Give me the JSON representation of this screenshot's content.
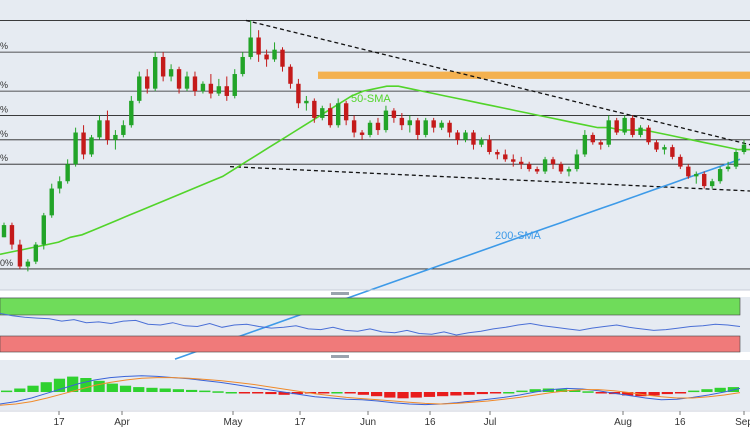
{
  "chart_data": [
    {
      "type": "candlestick",
      "title": "",
      "annotations": [
        "50-SMA",
        "200-SMA"
      ],
      "y_tick_labels": [
        "%",
        "%",
        "%",
        "%",
        "%",
        "0%"
      ],
      "candles": [
        [
          0.0,
          0.6,
          0.0,
          0.5
        ],
        [
          0.5,
          0.6,
          -0.5,
          -0.3
        ],
        [
          -0.3,
          -0.1,
          -1.3,
          -1.2
        ],
        [
          -1.2,
          -0.9,
          -1.4,
          -1.0
        ],
        [
          -1.0,
          -0.2,
          -1.1,
          -0.3
        ],
        [
          -0.3,
          1.0,
          -0.5,
          0.9
        ],
        [
          0.9,
          2.2,
          0.8,
          2.0
        ],
        [
          2.0,
          2.5,
          1.8,
          2.3
        ],
        [
          2.3,
          3.2,
          2.2,
          3.0
        ],
        [
          3.0,
          4.5,
          2.9,
          4.3
        ],
        [
          4.3,
          4.6,
          3.2,
          3.4
        ],
        [
          3.4,
          4.2,
          3.3,
          4.1
        ],
        [
          4.1,
          5.0,
          4.0,
          4.8
        ],
        [
          4.8,
          5.2,
          3.8,
          4.0
        ],
        [
          4.0,
          4.4,
          3.6,
          4.2
        ],
        [
          4.2,
          4.8,
          4.1,
          4.6
        ],
        [
          4.6,
          5.8,
          4.5,
          5.6
        ],
        [
          5.6,
          6.8,
          5.5,
          6.6
        ],
        [
          6.6,
          6.9,
          5.9,
          6.1
        ],
        [
          6.1,
          7.6,
          6.0,
          7.4
        ],
        [
          7.4,
          7.6,
          6.4,
          6.6
        ],
        [
          6.6,
          7.1,
          6.4,
          6.9
        ],
        [
          6.9,
          7.0,
          5.9,
          6.1
        ],
        [
          6.1,
          6.8,
          6.0,
          6.6
        ],
        [
          6.6,
          6.8,
          5.8,
          6.0
        ],
        [
          6.0,
          6.4,
          5.9,
          6.3
        ],
        [
          6.3,
          6.7,
          5.7,
          5.9
        ],
        [
          5.9,
          6.5,
          5.8,
          6.2
        ],
        [
          6.2,
          6.6,
          5.6,
          5.8
        ],
        [
          5.8,
          6.9,
          5.7,
          6.7
        ],
        [
          6.7,
          7.6,
          6.6,
          7.4
        ],
        [
          7.4,
          8.9,
          7.3,
          8.2
        ],
        [
          8.2,
          8.5,
          7.2,
          7.5
        ],
        [
          7.5,
          7.7,
          7.0,
          7.3
        ],
        [
          7.3,
          8.0,
          7.2,
          7.7
        ],
        [
          7.7,
          7.8,
          6.8,
          7.0
        ],
        [
          7.0,
          7.1,
          6.1,
          6.3
        ],
        [
          6.3,
          6.5,
          5.3,
          5.5
        ],
        [
          5.5,
          5.8,
          5.2,
          5.6
        ],
        [
          5.6,
          5.7,
          4.7,
          4.9
        ],
        [
          4.9,
          5.4,
          4.8,
          5.3
        ],
        [
          5.3,
          5.5,
          4.5,
          4.6
        ],
        [
          4.6,
          5.7,
          4.5,
          5.5
        ],
        [
          5.5,
          5.6,
          4.6,
          4.8
        ],
        [
          4.8,
          5.0,
          4.1,
          4.3
        ],
        [
          4.3,
          4.4,
          4.0,
          4.2
        ],
        [
          4.2,
          4.8,
          4.1,
          4.7
        ],
        [
          4.7,
          4.9,
          4.2,
          4.4
        ],
        [
          4.4,
          5.4,
          4.3,
          5.2
        ],
        [
          5.2,
          5.3,
          4.7,
          4.9
        ],
        [
          4.9,
          5.1,
          4.4,
          4.6
        ],
        [
          4.6,
          5.0,
          4.3,
          4.8
        ],
        [
          4.8,
          4.9,
          4.0,
          4.2
        ],
        [
          4.2,
          4.9,
          4.1,
          4.8
        ],
        [
          4.8,
          4.9,
          4.3,
          4.5
        ],
        [
          4.5,
          4.8,
          4.4,
          4.7
        ],
        [
          4.7,
          4.8,
          4.1,
          4.3
        ],
        [
          4.3,
          4.4,
          3.8,
          4.0
        ],
        [
          4.0,
          4.4,
          3.9,
          4.3
        ],
        [
          4.3,
          4.4,
          3.6,
          3.8
        ],
        [
          3.8,
          4.1,
          3.7,
          4.0
        ],
        [
          4.0,
          4.2,
          3.4,
          3.5
        ],
        [
          3.5,
          3.6,
          3.2,
          3.4
        ],
        [
          3.4,
          3.6,
          3.1,
          3.2
        ],
        [
          3.2,
          3.4,
          2.9,
          3.1
        ],
        [
          3.1,
          3.3,
          2.8,
          3.0
        ],
        [
          3.0,
          3.1,
          2.7,
          2.8
        ],
        [
          2.8,
          2.9,
          2.6,
          2.7
        ],
        [
          2.7,
          3.3,
          2.6,
          3.2
        ],
        [
          3.2,
          3.3,
          2.8,
          3.0
        ],
        [
          3.0,
          3.1,
          2.6,
          2.7
        ],
        [
          2.7,
          2.9,
          2.5,
          2.8
        ],
        [
          2.8,
          3.6,
          2.7,
          3.4
        ],
        [
          3.4,
          4.4,
          3.3,
          4.2
        ],
        [
          4.2,
          4.3,
          3.8,
          3.9
        ],
        [
          3.9,
          4.0,
          3.6,
          3.8
        ],
        [
          3.8,
          5.0,
          3.7,
          4.8
        ],
        [
          4.8,
          4.9,
          4.2,
          4.3
        ],
        [
          4.3,
          5.0,
          4.2,
          4.9
        ],
        [
          4.9,
          5.0,
          4.1,
          4.2
        ],
        [
          4.2,
          4.6,
          4.1,
          4.5
        ],
        [
          4.5,
          4.6,
          3.8,
          3.9
        ],
        [
          3.9,
          4.0,
          3.5,
          3.6
        ],
        [
          3.6,
          3.8,
          3.4,
          3.7
        ],
        [
          3.7,
          3.8,
          3.2,
          3.3
        ],
        [
          3.3,
          3.4,
          2.8,
          2.9
        ],
        [
          2.9,
          3.0,
          2.4,
          2.5
        ],
        [
          2.5,
          2.7,
          2.2,
          2.6
        ],
        [
          2.6,
          2.7,
          2.0,
          2.1
        ],
        [
          2.1,
          2.4,
          2.0,
          2.3
        ],
        [
          2.3,
          2.9,
          2.2,
          2.8
        ],
        [
          2.8,
          3.1,
          2.7,
          2.9
        ],
        [
          2.9,
          3.6,
          2.8,
          3.5
        ],
        [
          3.5,
          4.0,
          3.4,
          3.8
        ]
      ],
      "series": [
        {
          "name": "50-SMA",
          "color": "#52d42a",
          "values": [
            -0.7,
            -0.6,
            -0.5,
            -0.4,
            -0.3,
            -0.2,
            0.0,
            0.1,
            0.3,
            0.5,
            0.7,
            0.9,
            1.1,
            1.3,
            1.5,
            1.7,
            1.9,
            2.1,
            2.3,
            2.5,
            2.8,
            3.1,
            3.4,
            3.7,
            4.0,
            4.3,
            4.6,
            4.9,
            5.2,
            5.5,
            5.8,
            6.0,
            6.1,
            6.2,
            6.2,
            6.1,
            6.0,
            5.9,
            5.8,
            5.7,
            5.6,
            5.5,
            5.4,
            5.3,
            5.2,
            5.1,
            5.0,
            4.9,
            4.8,
            4.7,
            4.6,
            4.5,
            4.5,
            4.4,
            4.4,
            4.4,
            4.3,
            4.2,
            4.1,
            4.0,
            3.9,
            3.8,
            3.7,
            3.6,
            3.6
          ]
        },
        {
          "name": "200-SMA",
          "color": "#3d9ae8",
          "values": [
            -5.0,
            -4.8,
            -4.6,
            -4.4,
            -4.2,
            -4.0,
            -3.8,
            -3.6,
            -3.4,
            -3.2,
            -3.0,
            -2.8,
            -2.6,
            -2.4,
            -2.2,
            -2.0,
            -1.8,
            -1.6,
            -1.4,
            -1.2,
            -1.0,
            -0.8,
            -0.6,
            -0.4,
            -0.2,
            0.0,
            0.2,
            0.4,
            0.6,
            0.8,
            1.0,
            1.2,
            1.4,
            1.6,
            1.8,
            2.0,
            2.2,
            2.4,
            2.6,
            2.8,
            3.0,
            3.2
          ]
        }
      ],
      "resistance_zone": [
        6.5,
        6.8
      ],
      "horizontal_levels": [
        8.9,
        7.6,
        6.0,
        5.0,
        4.0,
        3.0,
        -1.3
      ],
      "trendlines": [
        "falling-resistance",
        "falling-support"
      ],
      "xlabel": "",
      "ylabel": ""
    },
    {
      "type": "line",
      "name": "RSI panel",
      "zones": {
        "overbought_color": "#6fdc5a",
        "oversold_color": "#f07a7a"
      },
      "values": [
        70,
        67,
        65,
        64,
        63,
        60,
        62,
        58,
        59,
        57,
        60,
        61,
        56,
        55,
        58,
        54,
        53,
        57,
        52,
        55,
        56,
        53,
        51,
        52,
        54,
        50,
        49,
        52,
        48,
        47,
        50,
        46,
        45,
        48,
        44,
        43,
        46,
        42,
        45,
        47,
        50,
        52,
        55,
        57,
        54,
        52,
        50,
        48,
        51,
        53,
        55,
        52,
        50,
        48,
        49,
        51,
        53,
        54,
        56,
        55,
        53
      ]
    },
    {
      "type": "bar",
      "name": "MACD panel",
      "values": [
        0.2,
        0.5,
        0.9,
        1.4,
        1.9,
        2.2,
        2.0,
        1.6,
        1.2,
        0.9,
        0.7,
        0.6,
        0.5,
        0.4,
        0.3,
        0.2,
        0.1,
        0.0,
        -0.1,
        -0.2,
        -0.3,
        -0.4,
        -0.3,
        -0.2,
        -0.1,
        0.0,
        -0.2,
        -0.4,
        -0.6,
        -0.8,
        -0.9,
        -0.8,
        -0.7,
        -0.6,
        -0.5,
        -0.4,
        -0.3,
        -0.2,
        0.0,
        0.2,
        0.4,
        0.5,
        0.4,
        0.3,
        0.1,
        -0.1,
        -0.3,
        -0.5,
        -0.6,
        -0.5,
        -0.3,
        -0.1,
        0.2,
        0.4,
        0.6,
        0.7
      ],
      "macd_line": [
        -2.0,
        -1.6,
        -1.0,
        -0.2,
        0.6,
        1.4,
        2.0,
        2.4,
        2.6,
        2.7,
        2.6,
        2.4,
        2.2,
        1.9,
        1.6,
        1.2,
        0.8,
        0.4,
        0.0,
        -0.4,
        -0.8,
        -1.0,
        -1.2,
        -1.3,
        -1.5,
        -1.8,
        -2.0,
        -2.1,
        -2.0,
        -1.8,
        -1.5,
        -1.2,
        -0.9,
        -0.5,
        0.0,
        0.4,
        0.6,
        0.5,
        0.2,
        -0.2,
        -0.6,
        -1.0,
        -1.3,
        -1.2,
        -0.9,
        -0.5,
        0.0,
        0.6
      ],
      "signal_line": [
        -2.2,
        -2.0,
        -1.6,
        -1.0,
        -0.3,
        0.4,
        1.1,
        1.6,
        2.0,
        2.3,
        2.4,
        2.4,
        2.3,
        2.1,
        1.9,
        1.6,
        1.3,
        0.9,
        0.5,
        0.1,
        -0.3,
        -0.6,
        -0.9,
        -1.1,
        -1.3,
        -1.5,
        -1.7,
        -1.9,
        -2.0,
        -1.9,
        -1.7,
        -1.5,
        -1.2,
        -0.9,
        -0.5,
        -0.1,
        0.2,
        0.4,
        0.4,
        0.2,
        -0.1,
        -0.5,
        -0.8,
        -1.0,
        -1.0,
        -0.8,
        -0.5,
        -0.1
      ]
    }
  ],
  "x_tick_labels": [
    "17",
    "Apr",
    "May",
    "17",
    "Jun",
    "16",
    "Jul",
    "Aug",
    "16",
    "Sep"
  ],
  "colors": {
    "bull": "#22a428",
    "bear": "#c41a1a",
    "sma50": "#52d42a",
    "sma200": "#3d9ae8",
    "resistance_zone": "#f6a733",
    "rsi_line": "#4a6fd6",
    "macd_line": "#3a63d8",
    "signal_line": "#f08a2a",
    "price_panel_bg": "#e6ebf2"
  }
}
